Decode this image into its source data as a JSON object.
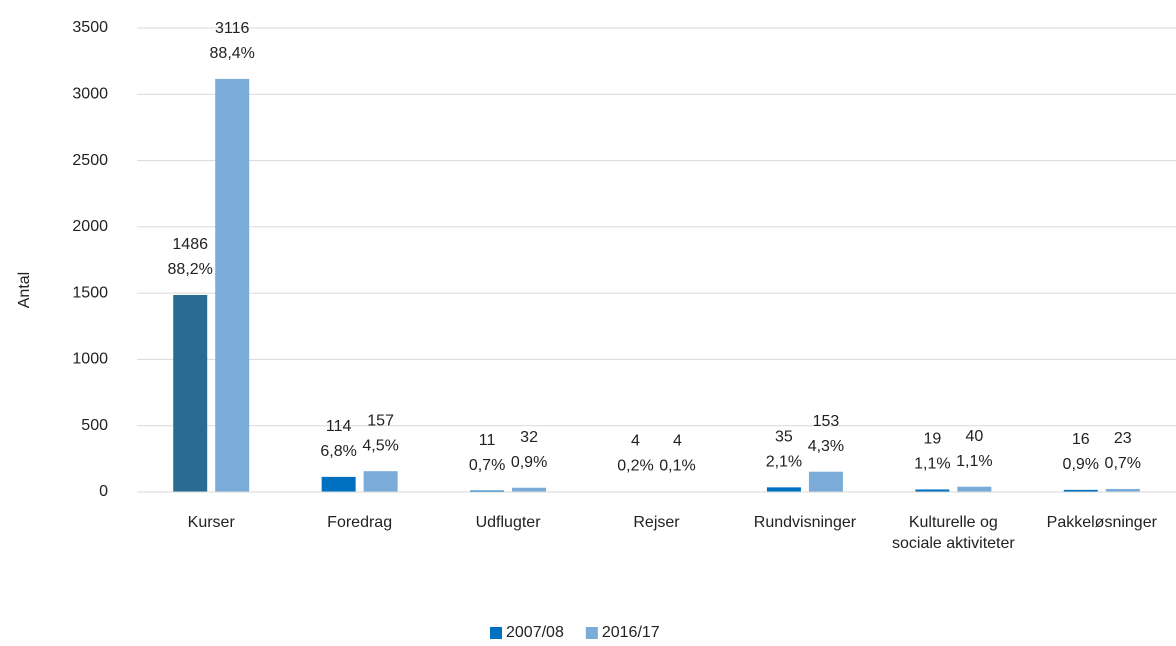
{
  "chart_data": {
    "type": "bar",
    "y_axis_label": "Antal",
    "categories": [
      "Kurser",
      "Foredrag",
      "Udflugter",
      "Rejser",
      "Rundvisninger",
      "Kulturelle og sociale aktiviteter",
      "Pakkeløsninger"
    ],
    "series": [
      {
        "name": "2007/08",
        "color": "#0070c0",
        "colors": [
          "#2a6b94",
          "#0070c0",
          "#0070c0",
          "#0070c0",
          "#0070c0",
          "#0070c0",
          "#0070c0"
        ],
        "values": [
          1486,
          114,
          11,
          4,
          35,
          19,
          16
        ],
        "share_labels": [
          "88,2%",
          "6,8%",
          "0,7%",
          "0,2%",
          "2,1%",
          "1,1%",
          "0,9%"
        ]
      },
      {
        "name": "2016/17",
        "color": "#7aabd9",
        "values": [
          3116,
          157,
          32,
          4,
          153,
          40,
          23
        ],
        "share_labels": [
          "88,4%",
          "4,5%",
          "0,9%",
          "0,1%",
          "4,3%",
          "1,1%",
          "0,7%"
        ]
      }
    ],
    "ylim": [
      0,
      3500
    ],
    "yticks": [
      0,
      500,
      1000,
      1500,
      2000,
      2500,
      3000,
      3500
    ],
    "grid": true,
    "legend": "bottom"
  }
}
